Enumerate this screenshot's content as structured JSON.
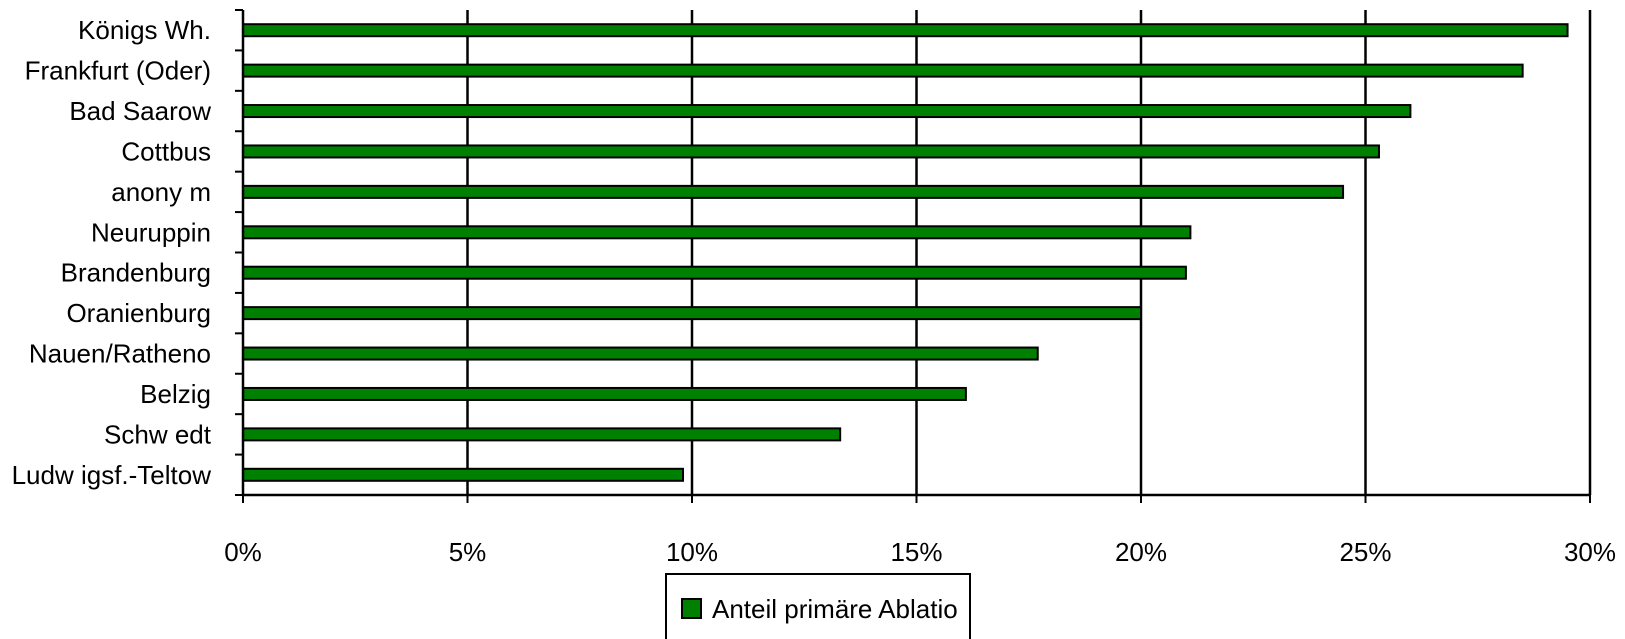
{
  "chart_data": {
    "type": "bar",
    "orientation": "horizontal",
    "categories": [
      "Königs Wh.",
      "Frankfurt (Oder)",
      "Bad Saarow",
      "Cottbus",
      "anony m",
      "Neuruppin",
      "Brandenburg",
      "Oranienburg",
      "Nauen/Ratheno",
      "Belzig",
      "Schw edt",
      "Ludw igsf.-Teltow"
    ],
    "series": [
      {
        "name": "Anteil primäre Ablatio",
        "values": [
          29.5,
          28.5,
          26.0,
          25.3,
          24.5,
          21.1,
          21.0,
          20.0,
          17.7,
          16.1,
          13.3,
          9.8
        ]
      }
    ],
    "xlim": [
      0,
      30
    ],
    "xticks": [
      0,
      5,
      10,
      15,
      20,
      25,
      30
    ],
    "xtick_labels": [
      "0%",
      "5%",
      "10%",
      "15%",
      "20%",
      "25%",
      "30%"
    ],
    "grid": "vertical",
    "legend_position": "bottom",
    "title": "",
    "xlabel": "",
    "ylabel": "",
    "colors": {
      "bar": "#008000",
      "bar_edge": "#000000",
      "grid": "#000000"
    }
  }
}
